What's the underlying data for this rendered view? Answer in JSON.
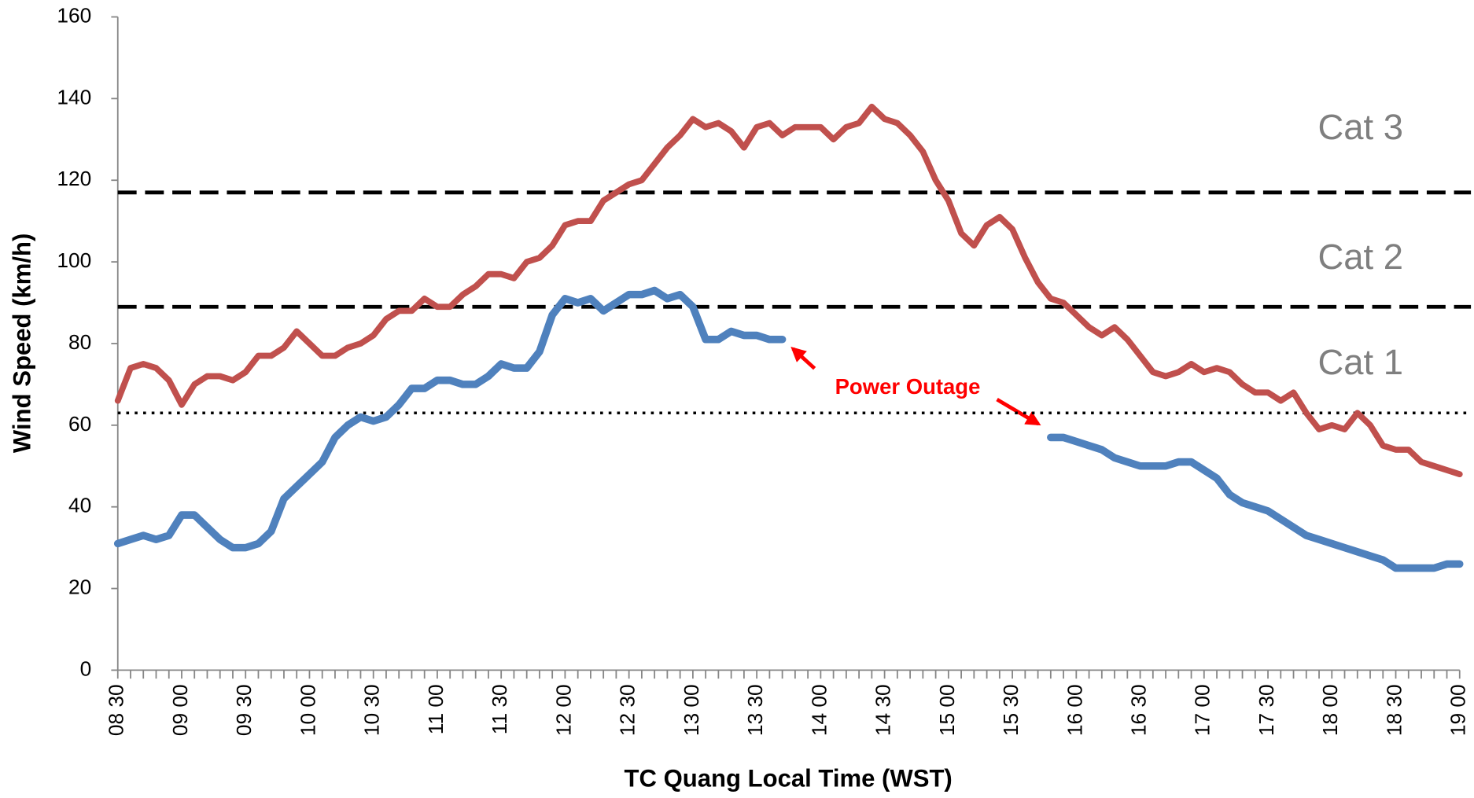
{
  "chart_data": {
    "type": "line",
    "ylabel": "Wind Speed (km/h)",
    "xlabel": "TC Quang Local Time (WST)",
    "categories": [
      "08 30",
      null,
      null,
      null,
      null,
      "09 00",
      null,
      null,
      null,
      null,
      "09 30",
      null,
      null,
      null,
      null,
      "10 00",
      null,
      null,
      null,
      null,
      "10 30",
      null,
      null,
      null,
      null,
      "11 00",
      null,
      null,
      null,
      null,
      "11 30",
      null,
      null,
      null,
      null,
      "12 00",
      null,
      null,
      null,
      null,
      "12 30",
      null,
      null,
      null,
      null,
      "13 00",
      null,
      null,
      null,
      null,
      "13 30",
      null,
      null,
      null,
      null,
      "14 00",
      null,
      null,
      null,
      null,
      "14 30",
      null,
      null,
      null,
      null,
      "15 00",
      null,
      null,
      null,
      null,
      "15 30",
      null,
      null,
      null,
      null,
      "16 00",
      null,
      null,
      null,
      null,
      "16 30",
      null,
      null,
      null,
      null,
      "17 00",
      null,
      null,
      null,
      null,
      "17 30",
      null,
      null,
      null,
      null,
      "18 00",
      null,
      null,
      null,
      null,
      "18 30",
      null,
      null,
      null,
      null,
      "19 00"
    ],
    "series": [
      {
        "color": "#c0504d",
        "values": [
          66,
          74,
          75,
          74,
          71,
          65,
          70,
          72,
          72,
          71,
          73,
          77,
          77,
          79,
          83,
          80,
          77,
          77,
          79,
          80,
          82,
          86,
          88,
          88,
          91,
          89,
          89,
          92,
          94,
          97,
          97,
          96,
          100,
          101,
          104,
          109,
          110,
          110,
          115,
          117,
          119,
          120,
          124,
          128,
          131,
          135,
          133,
          134,
          132,
          128,
          133,
          134,
          131,
          133,
          133,
          133,
          130,
          133,
          134,
          138,
          135,
          134,
          131,
          127,
          120,
          115,
          107,
          104,
          109,
          111,
          108,
          101,
          95,
          91,
          90,
          87,
          84,
          82,
          84,
          81,
          77,
          73,
          72,
          73,
          75,
          73,
          74,
          73,
          70,
          68,
          68,
          66,
          68,
          63,
          59,
          60,
          59,
          63,
          60,
          55,
          54,
          54,
          51,
          50,
          49,
          48
        ]
      },
      {
        "color": "#4f81bd",
        "values": [
          31,
          32,
          33,
          32,
          33,
          38,
          38,
          35,
          32,
          30,
          30,
          31,
          34,
          42,
          45,
          48,
          51,
          57,
          60,
          62,
          61,
          62,
          65,
          69,
          69,
          71,
          71,
          70,
          70,
          72,
          75,
          74,
          74,
          78,
          87,
          91,
          90,
          91,
          88,
          90,
          92,
          92,
          93,
          91,
          92,
          89,
          81,
          81,
          83,
          82,
          82,
          81,
          81,
          null,
          null,
          null,
          null,
          null,
          null,
          null,
          null,
          null,
          null,
          null,
          null,
          null,
          null,
          null,
          null,
          null,
          null,
          null,
          null,
          57,
          57,
          56,
          55,
          54,
          52,
          51,
          50,
          50,
          50,
          51,
          51,
          49,
          47,
          43,
          41,
          40,
          39,
          37,
          35,
          33,
          32,
          31,
          30,
          29,
          28,
          27,
          25,
          25,
          25,
          25,
          26,
          26
        ]
      }
    ],
    "ylim": [
      0,
      160
    ],
    "yticks": [
      0,
      20,
      40,
      60,
      80,
      100,
      120,
      140,
      160
    ],
    "hlines": [
      {
        "value": 117,
        "style": "dashed"
      },
      {
        "value": 89,
        "style": "dashed"
      },
      {
        "value": 63,
        "style": "dotted"
      }
    ],
    "annotations": [
      "Cat 3",
      "Cat 2",
      "Cat 1",
      "Power Outage"
    ]
  }
}
